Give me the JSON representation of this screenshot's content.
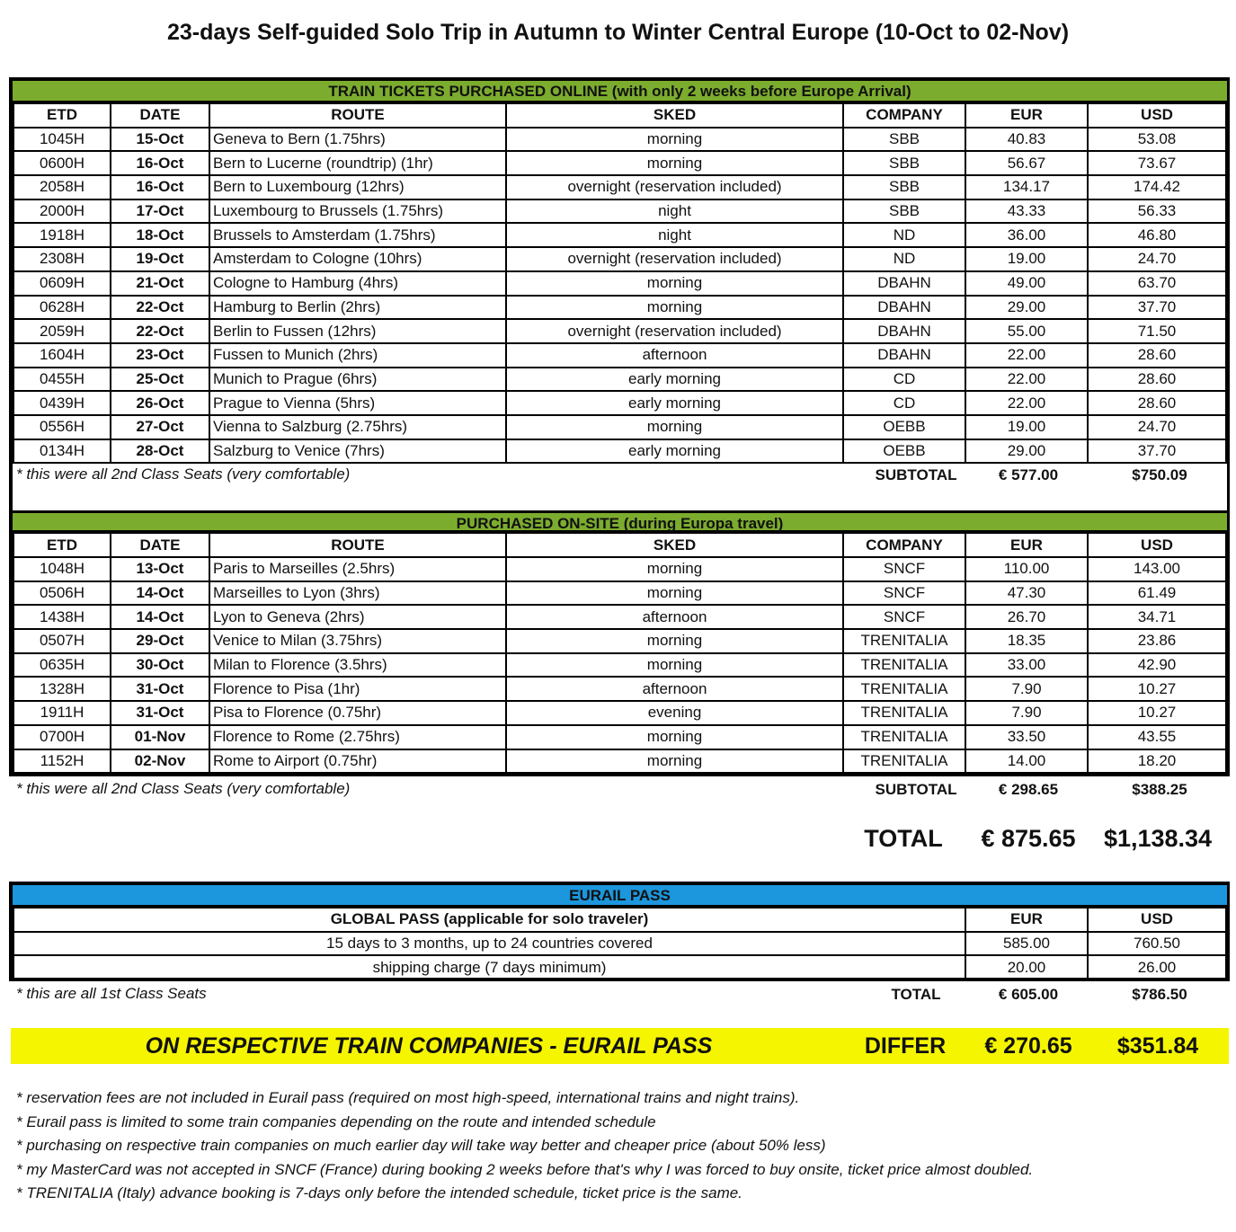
{
  "title": "23-days Self-guided Solo Trip in Autumn to Winter Central Europe (10-Oct to 02-Nov)",
  "colors": {
    "online_band": "#7cac2e",
    "eurail_band": "#1c96dc",
    "differ_band": "#f5f500"
  },
  "columns": [
    "ETD",
    "DATE",
    "ROUTE",
    "SKED",
    "COMPANY",
    "EUR",
    "USD"
  ],
  "online": {
    "heading": "TRAIN TICKETS PURCHASED ONLINE (with only 2 weeks before Europe Arrival)",
    "rows": [
      [
        "1045H",
        "15-Oct",
        "Geneva to Bern (1.75hrs)",
        "morning",
        "SBB",
        "40.83",
        "53.08"
      ],
      [
        "0600H",
        "16-Oct",
        "Bern to Lucerne (roundtrip) (1hr)",
        "morning",
        "SBB",
        "56.67",
        "73.67"
      ],
      [
        "2058H",
        "16-Oct",
        "Bern to Luxembourg (12hrs)",
        "overnight (reservation included)",
        "SBB",
        "134.17",
        "174.42"
      ],
      [
        "2000H",
        "17-Oct",
        "Luxembourg to Brussels (1.75hrs)",
        "night",
        "SBB",
        "43.33",
        "56.33"
      ],
      [
        "1918H",
        "18-Oct",
        "Brussels to Amsterdam (1.75hrs)",
        "night",
        "ND",
        "36.00",
        "46.80"
      ],
      [
        "2308H",
        "19-Oct",
        "Amsterdam to Cologne (10hrs)",
        "overnight (reservation included)",
        "ND",
        "19.00",
        "24.70"
      ],
      [
        "0609H",
        "21-Oct",
        "Cologne to Hamburg (4hrs)",
        "morning",
        "DBAHN",
        "49.00",
        "63.70"
      ],
      [
        "0628H",
        "22-Oct",
        "Hamburg to Berlin (2hrs)",
        "morning",
        "DBAHN",
        "29.00",
        "37.70"
      ],
      [
        "2059H",
        "22-Oct",
        "Berlin to Fussen (12hrs)",
        "overnight (reservation included)",
        "DBAHN",
        "55.00",
        "71.50"
      ],
      [
        "1604H",
        "23-Oct",
        "Fussen to Munich (2hrs)",
        "afternoon",
        "DBAHN",
        "22.00",
        "28.60"
      ],
      [
        "0455H",
        "25-Oct",
        "Munich to Prague (6hrs)",
        "early morning",
        "CD",
        "22.00",
        "28.60"
      ],
      [
        "0439H",
        "26-Oct",
        "Prague to Vienna (5hrs)",
        "early morning",
        "CD",
        "22.00",
        "28.60"
      ],
      [
        "0556H",
        "27-Oct",
        "Vienna to Salzburg (2.75hrs)",
        "morning",
        "OEBB",
        "19.00",
        "24.70"
      ],
      [
        "0134H",
        "28-Oct",
        "Salzburg to Venice (7hrs)",
        "early morning",
        "OEBB",
        "29.00",
        "37.70"
      ]
    ],
    "note": "* this were all 2nd Class Seats (very comfortable)",
    "subtotal_label": "SUBTOTAL",
    "subtotal_eur": "€ 577.00",
    "subtotal_usd": "$750.09"
  },
  "onsite": {
    "heading": "PURCHASED ON-SITE (during Europa travel)",
    "rows": [
      [
        "1048H",
        "13-Oct",
        "Paris to Marseilles (2.5hrs)",
        "morning",
        "SNCF",
        "110.00",
        "143.00"
      ],
      [
        "0506H",
        "14-Oct",
        "Marseilles to Lyon (3hrs)",
        "morning",
        "SNCF",
        "47.30",
        "61.49"
      ],
      [
        "1438H",
        "14-Oct",
        "Lyon to Geneva (2hrs)",
        "afternoon",
        "SNCF",
        "26.70",
        "34.71"
      ],
      [
        "0507H",
        "29-Oct",
        "Venice to Milan (3.75hrs)",
        "morning",
        "TRENITALIA",
        "18.35",
        "23.86"
      ],
      [
        "0635H",
        "30-Oct",
        "Milan to Florence (3.5hrs)",
        "morning",
        "TRENITALIA",
        "33.00",
        "42.90"
      ],
      [
        "1328H",
        "31-Oct",
        "Florence to Pisa (1hr)",
        "afternoon",
        "TRENITALIA",
        "7.90",
        "10.27"
      ],
      [
        "1911H",
        "31-Oct",
        "Pisa to Florence (0.75hr)",
        "evening",
        "TRENITALIA",
        "7.90",
        "10.27"
      ],
      [
        "0700H",
        "01-Nov",
        "Florence to Rome (2.75hrs)",
        "morning",
        "TRENITALIA",
        "33.50",
        "43.55"
      ],
      [
        "1152H",
        "02-Nov",
        "Rome to Airport (0.75hr)",
        "morning",
        "TRENITALIA",
        "14.00",
        "18.20"
      ]
    ],
    "note": "* this were all 2nd Class Seats (very comfortable)",
    "subtotal_label": "SUBTOTAL",
    "subtotal_eur": "€ 298.65",
    "subtotal_usd": "$388.25"
  },
  "total": {
    "label": "TOTAL",
    "eur": "€ 875.65",
    "usd": "$1,138.34"
  },
  "eurail": {
    "heading": "EURAIL PASS",
    "col_label": "GLOBAL PASS (applicable for solo traveler)",
    "col_eur": "EUR",
    "col_usd": "USD",
    "rows": [
      [
        "15 days to 3 months, up to 24 countries covered",
        "585.00",
        "760.50"
      ],
      [
        "shipping charge (7 days minimum)",
        "20.00",
        "26.00"
      ]
    ],
    "note": "* this are all 1st Class Seats",
    "total_label": "TOTAL",
    "total_eur": "€ 605.00",
    "total_usd": "$786.50"
  },
  "differ": {
    "text": "ON RESPECTIVE TRAIN COMPANIES - EURAIL PASS",
    "label": "DIFFER",
    "eur": "€ 270.65",
    "usd": "$351.84"
  },
  "notes": [
    "* reservation fees are not included in Eurail pass (required on most high-speed, international trains and night trains).",
    "* Eurail pass is limited to some train companies depending on the route and intended schedule",
    "* purchasing on respective train companies on much earlier day will take way better and cheaper price (about 50% less)",
    "* my MasterCard was not accepted in SNCF (France) during booking 2 weeks before that's why I was forced to buy onsite, ticket price almost doubled.",
    "* TRENITALIA (Italy) advance booking is 7-days only before the intended schedule, ticket price is the same."
  ]
}
